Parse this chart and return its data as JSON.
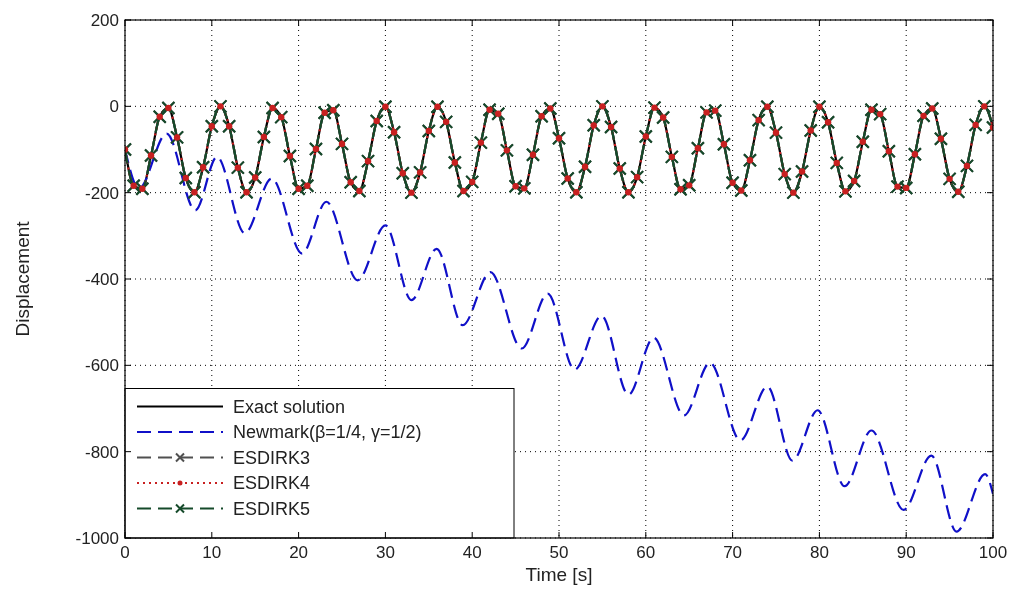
{
  "chart_data": {
    "type": "line",
    "xlabel": "Time [s]",
    "ylabel": "Displacement",
    "xlim": [
      0,
      100
    ],
    "xticks": [
      0,
      10,
      20,
      30,
      40,
      50,
      60,
      70,
      80,
      90,
      100
    ],
    "ylim": [
      -1000,
      200
    ],
    "yticks": [
      -1000,
      -800,
      -600,
      -400,
      -200,
      0,
      200
    ],
    "grid": true,
    "legend": "bottom left",
    "x": [
      0,
      1,
      2,
      3,
      4,
      5,
      6,
      7,
      8,
      9,
      10,
      11,
      12,
      13,
      14,
      15,
      16,
      17,
      18,
      19,
      20,
      21,
      22,
      23,
      24,
      25,
      26,
      27,
      28,
      29,
      30,
      31,
      32,
      33,
      34,
      35,
      36,
      37,
      38,
      39,
      40,
      41,
      42,
      43,
      44,
      45,
      46,
      47,
      48,
      49,
      50,
      51,
      52,
      53,
      54,
      55,
      56,
      57,
      58,
      59,
      60,
      61,
      62,
      63,
      64,
      65,
      66,
      67,
      68,
      69,
      70,
      71,
      72,
      73,
      74,
      75,
      76,
      77,
      78,
      79,
      80,
      81,
      82,
      83,
      84,
      85,
      86,
      87,
      88,
      89,
      90,
      91,
      92,
      93,
      94,
      95,
      96,
      97,
      98,
      99,
      100
    ],
    "series": [
      {
        "name": "Exact solution",
        "color": "#000000",
        "line_style": "solid",
        "marker": "none",
        "values": [
          -100,
          -184,
          -191,
          -114,
          -24,
          -4,
          -72,
          -166,
          -199,
          -141,
          -46,
          0,
          -46,
          -142,
          -199,
          -165,
          -71,
          -4,
          -25,
          -115,
          -191,
          -184,
          -99,
          -15,
          -9,
          -87,
          -176,
          -196,
          -127,
          -34,
          -1,
          -60,
          -155,
          -200,
          -153,
          -57,
          -1,
          -36,
          -130,
          -196,
          -175,
          -84,
          -8,
          -17,
          -102,
          -185,
          -190,
          -112,
          -23,
          -5,
          -74,
          -167,
          -199,
          -140,
          -44,
          0,
          -48,
          -144,
          -199,
          -164,
          -70,
          -3,
          -26,
          -117,
          -192,
          -183,
          -97,
          -14,
          -10,
          -88,
          -177,
          -195,
          -125,
          -32,
          -1,
          -61,
          -157,
          -200,
          -151,
          -56,
          -1,
          -37,
          -131,
          -197,
          -173,
          -82,
          -8,
          -18,
          -104,
          -186,
          -189,
          -111,
          -22,
          -5,
          -75,
          -168,
          -198,
          -138,
          -43,
          0,
          -49
        ]
      },
      {
        "name": "Newmark(β=1/4, γ=1/2)",
        "color": "#1010c8",
        "line_style": "dashed",
        "marker": "none",
        "x": [
          0,
          1.6,
          4.8,
          8.1,
          10.6,
          13.8,
          16.9,
          20.4,
          23.2,
          26.8,
          30.0,
          33.0,
          35.9,
          38.9,
          42.1,
          45.7,
          48.7,
          51.8,
          54.9,
          58.0,
          60.9,
          64.4,
          67.4,
          70.9,
          74.0,
          76.9,
          79.8,
          82.9,
          86.0,
          89.7,
          92.9,
          95.8,
          99.1,
          100
        ],
        "values": [
          -100,
          -190,
          -63,
          -241,
          -117,
          -294,
          -167,
          -341,
          -221,
          -403,
          -276,
          -449,
          -330,
          -507,
          -384,
          -561,
          -434,
          -610,
          -485,
          -668,
          -536,
          -716,
          -594,
          -774,
          -649,
          -821,
          -704,
          -880,
          -751,
          -935,
          -809,
          -985,
          -852,
          -898
        ]
      },
      {
        "name": "ESDIRK3",
        "color": "#505050",
        "line_style": "dashed",
        "marker": "cross",
        "values": [
          -100,
          -184,
          -191,
          -114,
          -24,
          -4,
          -72,
          -166,
          -199,
          -141,
          -46,
          0,
          -46,
          -142,
          -199,
          -165,
          -71,
          -4,
          -25,
          -115,
          -191,
          -184,
          -99,
          -15,
          -9,
          -87,
          -176,
          -196,
          -127,
          -34,
          -1,
          -60,
          -155,
          -200,
          -153,
          -57,
          -1,
          -36,
          -130,
          -196,
          -175,
          -84,
          -8,
          -17,
          -102,
          -185,
          -190,
          -112,
          -23,
          -5,
          -74,
          -167,
          -199,
          -140,
          -44,
          0,
          -48,
          -144,
          -199,
          -164,
          -70,
          -3,
          -26,
          -117,
          -192,
          -183,
          -97,
          -14,
          -10,
          -88,
          -177,
          -195,
          -125,
          -32,
          -1,
          -61,
          -157,
          -200,
          -151,
          -56,
          -1,
          -37,
          -131,
          -197,
          -173,
          -82,
          -8,
          -18,
          -104,
          -186,
          -189,
          -111,
          -22,
          -5,
          -75,
          -168,
          -198,
          -138,
          -43,
          0,
          -49
        ]
      },
      {
        "name": "ESDIRK4",
        "color": "#c82020",
        "line_style": "dotted",
        "marker": "circle",
        "values": [
          -100,
          -184,
          -191,
          -114,
          -24,
          -4,
          -72,
          -166,
          -199,
          -141,
          -46,
          0,
          -46,
          -142,
          -199,
          -165,
          -71,
          -4,
          -25,
          -115,
          -191,
          -184,
          -99,
          -15,
          -9,
          -87,
          -176,
          -196,
          -127,
          -34,
          -1,
          -60,
          -155,
          -200,
          -153,
          -57,
          -1,
          -36,
          -130,
          -196,
          -175,
          -84,
          -8,
          -17,
          -102,
          -185,
          -190,
          -112,
          -23,
          -5,
          -74,
          -167,
          -199,
          -140,
          -44,
          0,
          -48,
          -144,
          -199,
          -164,
          -70,
          -3,
          -26,
          -117,
          -192,
          -183,
          -97,
          -14,
          -10,
          -88,
          -177,
          -195,
          -125,
          -32,
          -1,
          -61,
          -157,
          -200,
          -151,
          -56,
          -1,
          -37,
          -131,
          -197,
          -173,
          -82,
          -8,
          -18,
          -104,
          -186,
          -189,
          -111,
          -22,
          -5,
          -75,
          -168,
          -198,
          -138,
          -43,
          0,
          -49
        ]
      },
      {
        "name": "ESDIRK5",
        "color": "#154a2a",
        "line_style": "dashed",
        "marker": "cross",
        "values": [
          -100,
          -184,
          -191,
          -114,
          -24,
          -4,
          -72,
          -166,
          -199,
          -141,
          -46,
          0,
          -46,
          -142,
          -199,
          -165,
          -71,
          -4,
          -25,
          -115,
          -191,
          -184,
          -99,
          -15,
          -9,
          -87,
          -176,
          -196,
          -127,
          -34,
          -1,
          -60,
          -155,
          -200,
          -153,
          -57,
          -1,
          -36,
          -130,
          -196,
          -175,
          -84,
          -8,
          -17,
          -102,
          -185,
          -190,
          -112,
          -23,
          -5,
          -74,
          -167,
          -199,
          -140,
          -44,
          0,
          -48,
          -144,
          -199,
          -164,
          -70,
          -3,
          -26,
          -117,
          -192,
          -183,
          -97,
          -14,
          -10,
          -88,
          -177,
          -195,
          -125,
          -32,
          -1,
          -61,
          -157,
          -200,
          -151,
          -56,
          -1,
          -37,
          -131,
          -197,
          -173,
          -82,
          -8,
          -18,
          -104,
          -186,
          -189,
          -111,
          -22,
          -5,
          -75,
          -168,
          -198,
          -138,
          -43,
          0,
          -49
        ]
      }
    ]
  }
}
